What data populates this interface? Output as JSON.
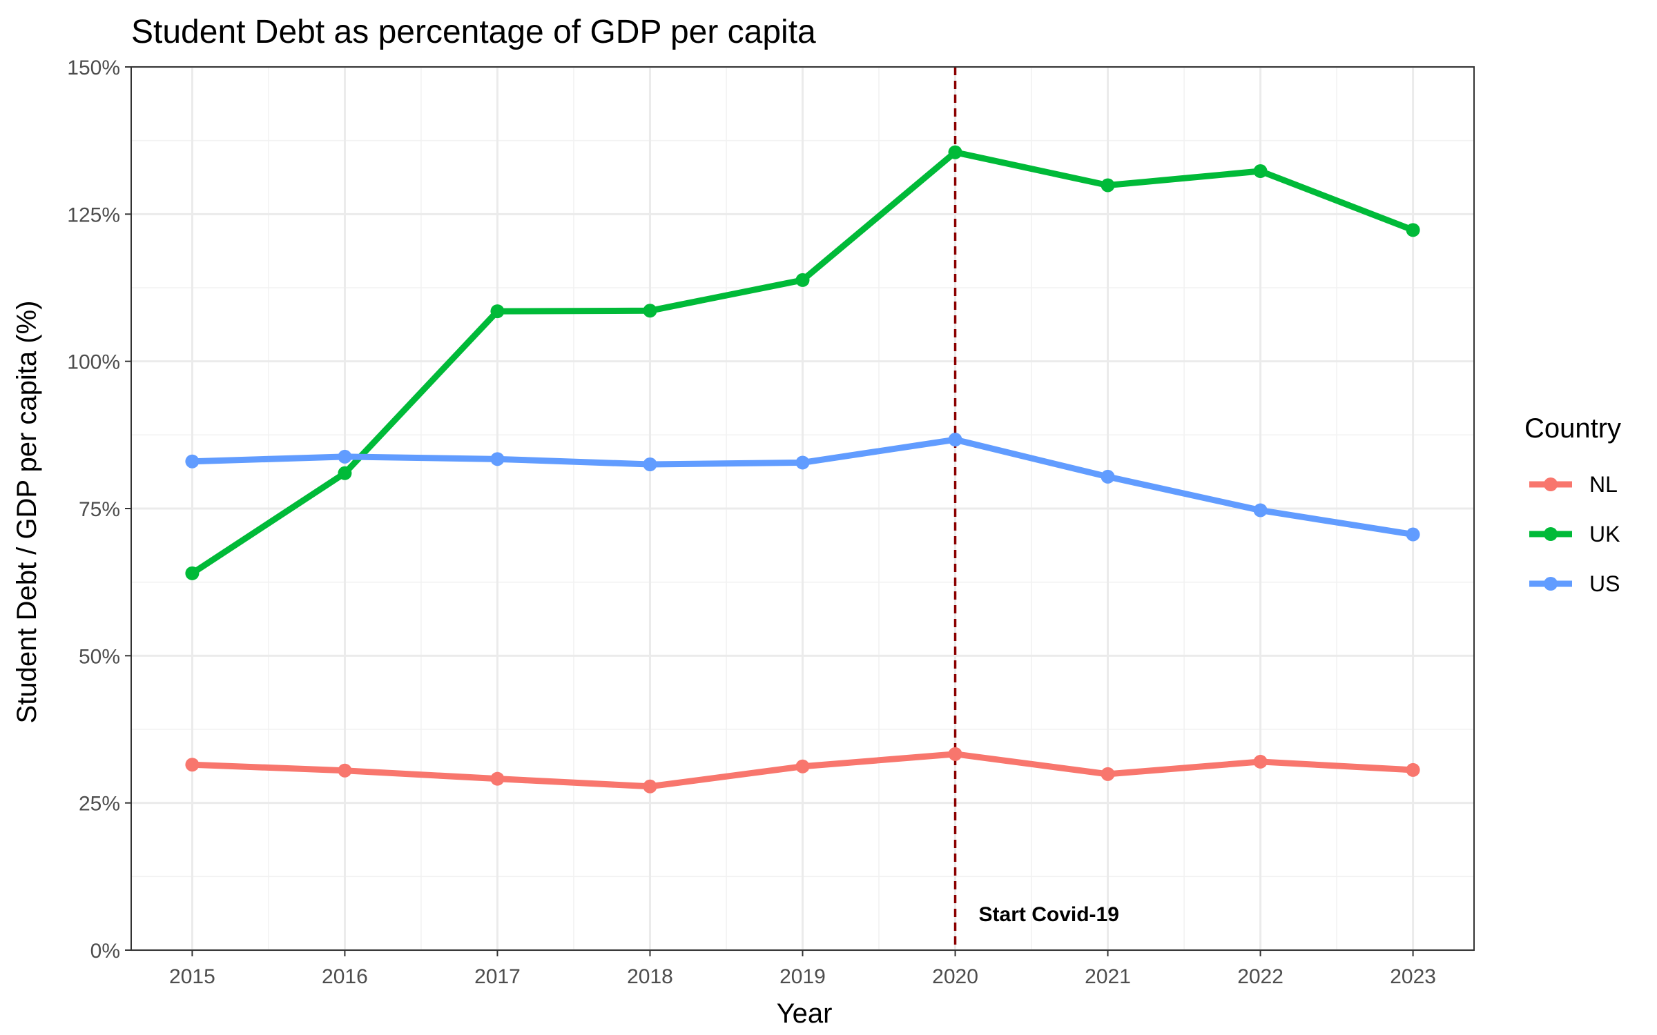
{
  "chart_data": {
    "type": "line",
    "title": "Student Debt as percentage of GDP per capita",
    "xlabel": "Year",
    "ylabel": "Student Debt / GDP per capita (%)",
    "x": [
      2015,
      2016,
      2017,
      2018,
      2019,
      2020,
      2021,
      2022,
      2023
    ],
    "ylim": [
      0,
      150
    ],
    "y_ticks": [
      "0%",
      "25%",
      "50%",
      "75%",
      "100%",
      "125%",
      "150%"
    ],
    "y_tick_values": [
      0,
      25,
      50,
      75,
      100,
      125,
      150
    ],
    "grid": true,
    "legend": {
      "title": "Country",
      "position": "right"
    },
    "series": [
      {
        "name": "NL",
        "color": "#F8766D",
        "values": [
          31.5,
          30.5,
          29.1,
          27.8,
          31.2,
          33.3,
          29.9,
          32.0,
          30.6
        ]
      },
      {
        "name": "UK",
        "color": "#00BA38",
        "values": [
          64.0,
          81.0,
          108.5,
          108.6,
          113.8,
          135.5,
          129.9,
          132.3,
          122.3
        ]
      },
      {
        "name": "US",
        "color": "#619CFF",
        "values": [
          83.0,
          83.8,
          83.4,
          82.5,
          82.8,
          86.7,
          80.4,
          74.7,
          70.6
        ]
      }
    ],
    "annotations": [
      {
        "x": 2020,
        "text": "Start Covid-19",
        "line_color": "#8B0000",
        "line_style": "dashed"
      }
    ]
  }
}
